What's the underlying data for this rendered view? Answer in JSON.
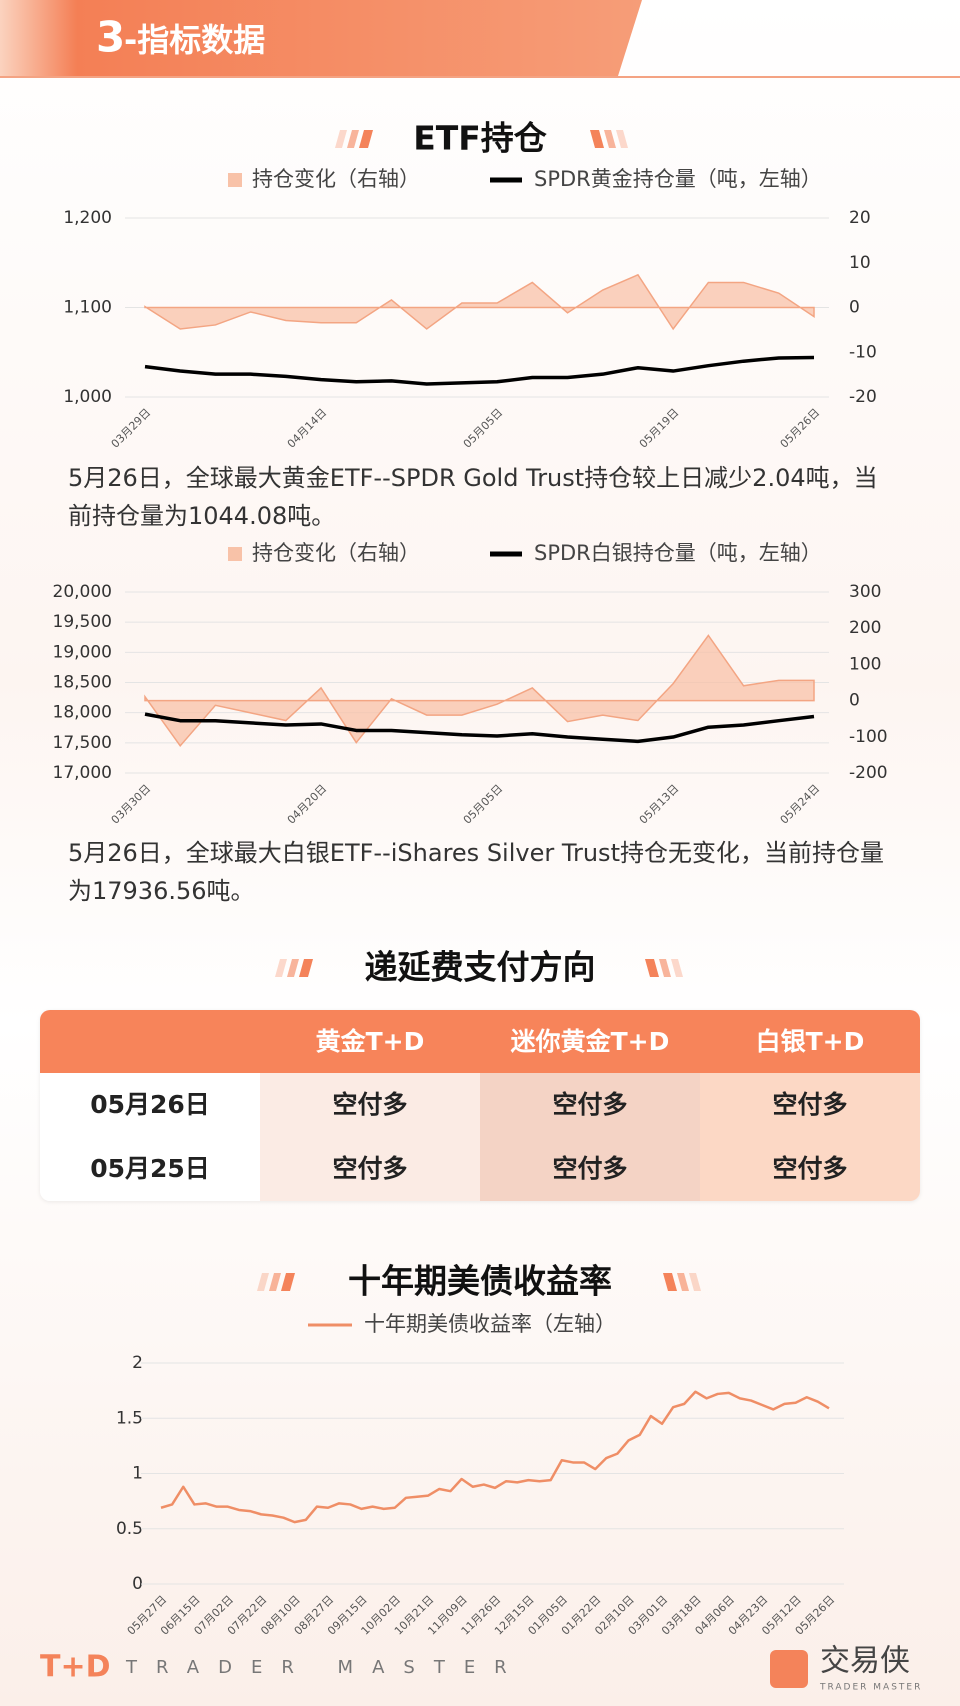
{
  "header": {
    "number": "3",
    "title": "-指标数据"
  },
  "sections": [
    "ETF持仓",
    "递延费支付方向",
    "十年期美债收益率"
  ],
  "chart_data": [
    {
      "type": "combo",
      "categories": [
        "03月29日",
        null,
        null,
        null,
        null,
        "04月14日",
        null,
        null,
        null,
        null,
        "05月05日",
        null,
        null,
        null,
        null,
        "05月19日",
        null,
        null,
        null,
        "05月26日"
      ],
      "series": [
        {
          "name": "持仓变化（右轴）",
          "type": "area",
          "axis": "y2",
          "color": "#f8c2a8",
          "values": [
            0.2,
            -4.8,
            -3.9,
            -1,
            -2.9,
            -3.4,
            -3.4,
            1.7,
            -4.8,
            1,
            1,
            5.6,
            -1.2,
            3.9,
            7.3,
            -4.8,
            5.6,
            5.6,
            3.2,
            -2.04
          ]
        },
        {
          "name": "SPDR黄金持仓量（吨，左轴）",
          "type": "line",
          "color": "#000000",
          "values": [
            1033.9,
            1029,
            1025.5,
            1025.5,
            1023,
            1019.4,
            1017,
            1018,
            1014.5,
            1015.8,
            1017,
            1021.8,
            1021.8,
            1025.5,
            1032.7,
            1029,
            1035,
            1040,
            1043.6,
            1044.08
          ]
        }
      ],
      "ylim": [
        1000,
        1200
      ],
      "yticks": [
        {
          "value": 1000,
          "label": "1,000"
        },
        {
          "value": 1100,
          "label": "1,100"
        },
        {
          "value": 1200,
          "label": "1,200"
        }
      ],
      "y2lim": [
        -20,
        20
      ],
      "y2ticks": [
        -20,
        -10,
        0,
        10,
        20
      ],
      "grid": true
    },
    {
      "type": "combo",
      "categories": [
        "03月30日",
        null,
        null,
        null,
        null,
        "04月20日",
        null,
        null,
        null,
        null,
        "05月05日",
        null,
        null,
        null,
        null,
        "05月13日",
        null,
        null,
        null,
        "05月24日"
      ],
      "series": [
        {
          "name": "持仓变化（右轴）",
          "type": "area",
          "axis": "y2",
          "color": "#f8c2a8",
          "values": [
            10.8,
            -125,
            -13,
            -34,
            -55,
            35,
            -116,
            5,
            -40,
            -40,
            -10,
            35,
            -58,
            -40,
            -55,
            47,
            180,
            41,
            56,
            56
          ]
        },
        {
          "name": "SPDR白银持仓量（吨，左轴）",
          "type": "line",
          "color": "#000000",
          "values": [
            17976,
            17867,
            17867,
            17831,
            17795,
            17813,
            17705,
            17705,
            17669,
            17633,
            17614,
            17651,
            17596,
            17560,
            17524,
            17596,
            17759,
            17795,
            17867,
            17936.56
          ]
        }
      ],
      "ylim": [
        17000,
        20000
      ],
      "yticks": [
        {
          "value": 17000,
          "label": "17,000"
        },
        {
          "value": 17500,
          "label": "17,500"
        },
        {
          "value": 18000,
          "label": "18,000"
        },
        {
          "value": 18500,
          "label": "18,500"
        },
        {
          "value": 19000,
          "label": "19,000"
        },
        {
          "value": 19500,
          "label": "19,500"
        },
        {
          "value": 20000,
          "label": "20,000"
        }
      ],
      "y2lim": [
        -200,
        300
      ],
      "y2ticks": [
        -200,
        -100,
        0,
        100,
        200,
        300
      ],
      "grid": true
    },
    {
      "type": "line",
      "categories": [
        "05月27日",
        null,
        null,
        "06月15日",
        null,
        null,
        "07月02日",
        null,
        null,
        "07月22日",
        null,
        null,
        "08月10日",
        null,
        null,
        "08月27日",
        null,
        null,
        "09月15日",
        null,
        null,
        "10月02日",
        null,
        null,
        "10月21日",
        null,
        null,
        "11月09日",
        null,
        null,
        "11月26日",
        null,
        null,
        "12月15日",
        null,
        null,
        "01月05日",
        null,
        null,
        "01月22日",
        null,
        null,
        "02月10日",
        null,
        null,
        "03月01日",
        null,
        null,
        "03月18日",
        null,
        null,
        "04月06日",
        null,
        null,
        "04月23日",
        null,
        null,
        "05月12日",
        null,
        null,
        "05月26日"
      ],
      "series": [
        {
          "name": "十年期美债收益率（左轴）",
          "type": "line",
          "color": "#ef8e66",
          "values": [
            0.69,
            0.72,
            0.88,
            0.72,
            0.73,
            0.7,
            0.7,
            0.67,
            0.66,
            0.63,
            0.62,
            0.6,
            0.56,
            0.58,
            0.7,
            0.69,
            0.73,
            0.72,
            0.68,
            0.7,
            0.68,
            0.69,
            0.78,
            0.79,
            0.8,
            0.86,
            0.84,
            0.95,
            0.88,
            0.9,
            0.87,
            0.93,
            0.92,
            0.94,
            0.93,
            0.94,
            1.12,
            1.1,
            1.1,
            1.04,
            1.14,
            1.18,
            1.3,
            1.35,
            1.52,
            1.45,
            1.6,
            1.63,
            1.74,
            1.68,
            1.72,
            1.73,
            1.68,
            1.66,
            1.62,
            1.58,
            1.63,
            1.64,
            1.69,
            1.65,
            1.59
          ]
        }
      ],
      "ylim": [
        0,
        2
      ],
      "yticks": [
        0,
        0.5,
        1,
        1.5,
        2
      ],
      "grid": true
    }
  ],
  "paragraphs": [
    "5月26日，全球最大黄金ETF--SPDR Gold Trust持仓较上日减少2.04吨，当前持仓量为1044.08吨。",
    "5月26日，全球最大白银ETF--iShares Silver Trust持仓无变化，当前持仓量为17936.56吨。"
  ],
  "table": {
    "columns": [
      "黄金T+D",
      "迷你黄金T+D",
      "白银T+D"
    ],
    "rows": [
      [
        "05月26日",
        "空付多",
        "空付多",
        "空付多"
      ],
      [
        "05月25日",
        "空付多",
        "空付多",
        "空付多"
      ]
    ]
  },
  "footer": {
    "logo": "T+D",
    "brand": "TRADER MASTER",
    "app": "交易侠",
    "app_sub": "TRADER MASTER"
  }
}
